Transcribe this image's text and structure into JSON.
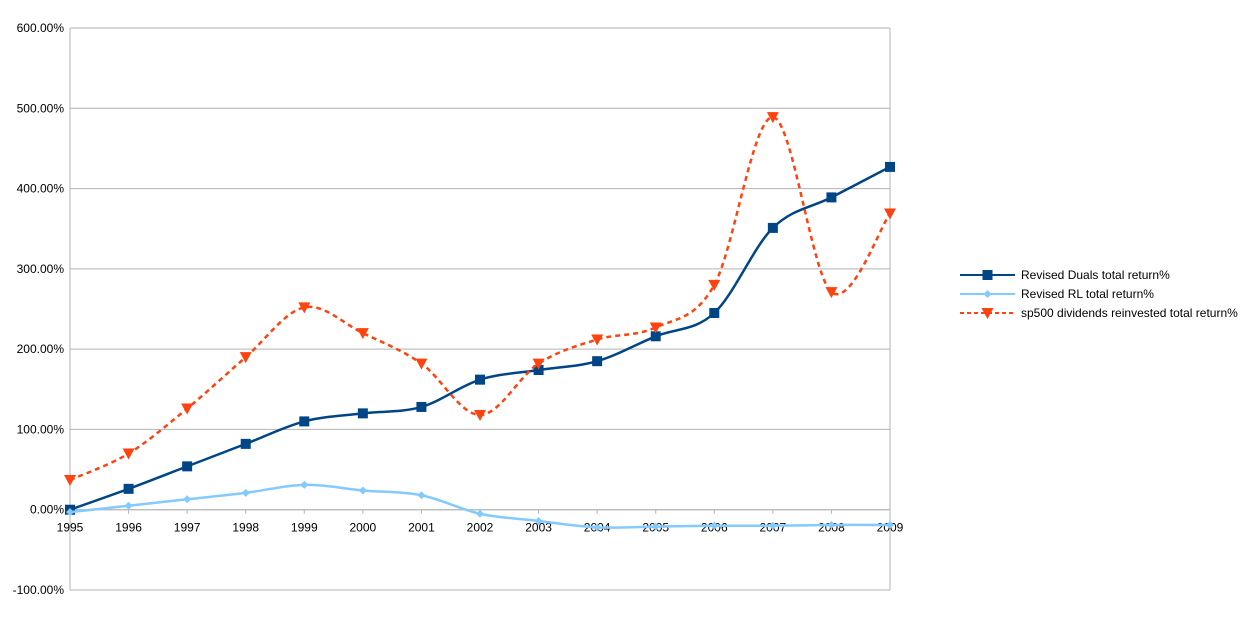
{
  "chart_data": {
    "type": "line",
    "title": "",
    "xlabel": "",
    "ylabel": "",
    "categories": [
      "1995",
      "1996",
      "1997",
      "1998",
      "1999",
      "2000",
      "2001",
      "2002",
      "2003",
      "2004",
      "2005",
      "2006",
      "2007",
      "2008",
      "2009"
    ],
    "y_ticks": [
      "600.00%",
      "500.00%",
      "400.00%",
      "300.00%",
      "200.00%",
      "100.00%",
      "0.00%",
      "-100.00%"
    ],
    "ylim": [
      -100,
      600
    ],
    "grid": "horizontal",
    "legend_position": "right",
    "smoothed": true,
    "series": [
      {
        "name": "Revised Duals  total return%",
        "color": "#004586",
        "marker": "square",
        "dash": "solid",
        "values": [
          0,
          26,
          54,
          82,
          110,
          120,
          128,
          162,
          174,
          185,
          216,
          245,
          351,
          389,
          427
        ]
      },
      {
        "name": "Revised RL  total return%",
        "color": "#83caff",
        "marker": "diamond",
        "dash": "solid",
        "values": [
          -3,
          5,
          13,
          21,
          31,
          24,
          18,
          -5,
          -14,
          -22,
          -21,
          -20,
          -20,
          -19,
          -19
        ]
      },
      {
        "name": "sp500 dividends reinvested total return%",
        "color": "#ff420e",
        "marker": "triangle-down",
        "dash": "dashed",
        "values": [
          37,
          70,
          126,
          190,
          252,
          220,
          182,
          118,
          182,
          212,
          227,
          280,
          489,
          271,
          369
        ]
      }
    ]
  }
}
